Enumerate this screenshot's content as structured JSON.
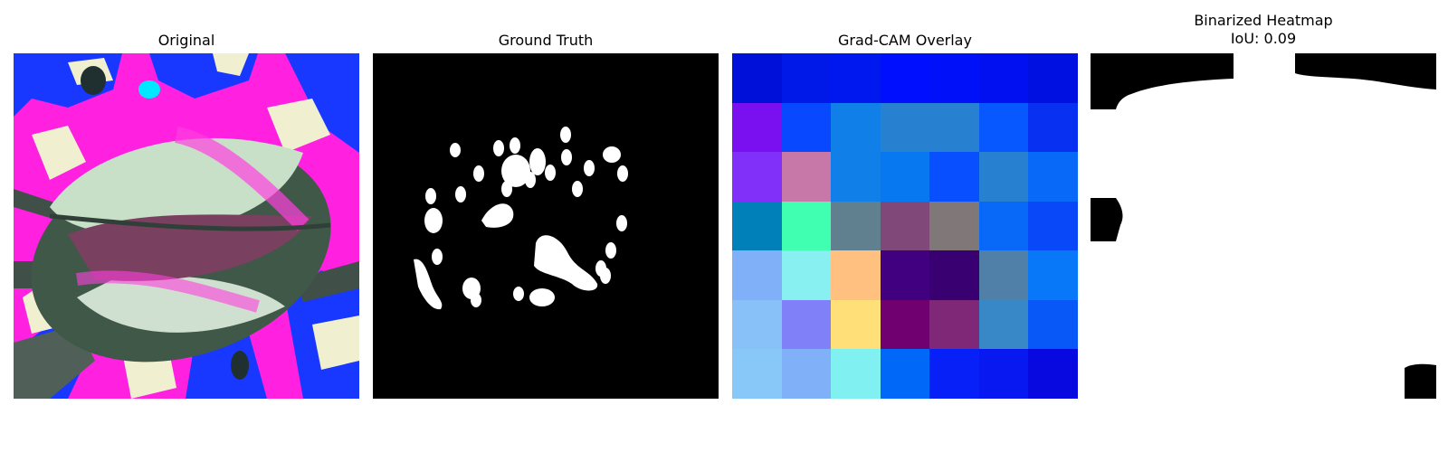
{
  "figure": {
    "panels": [
      {
        "id": "original",
        "title_lines": [
          "Original"
        ],
        "icon": "leaf-image"
      },
      {
        "id": "ground_truth",
        "title_lines": [
          "Ground Truth"
        ],
        "icon": "binary-mask"
      },
      {
        "id": "gradcam_overlay",
        "title_lines": [
          "Grad-CAM Overlay"
        ],
        "icon": "heatmap-grid"
      },
      {
        "id": "binarized_heatmap",
        "title_lines": [
          "Binarized Heatmap",
          "IoU: 0.09"
        ],
        "icon": "binary-mask"
      }
    ],
    "iou": 0.09,
    "gradcam_cells": [
      [
        "#0010d8",
        "#0018e8",
        "#0018f0",
        "#0010ff",
        "#0010f8",
        "#0010f0",
        "#0010e0"
      ],
      [
        "#7a10f0",
        "#0848ff",
        "#1080e8",
        "#2880d0",
        "#2880d0",
        "#0858ff",
        "#0830f0"
      ],
      [
        "#8030f8",
        "#c878a8",
        "#1080e8",
        "#0878f0",
        "#0850ff",
        "#2880d0",
        "#0868f8"
      ],
      [
        "#0080b8",
        "#40ffb0",
        "#608090",
        "#804878",
        "#807878",
        "#0868f8",
        "#0848f8"
      ],
      [
        "#80b0f8",
        "#88f0f0",
        "#ffc080",
        "#400080",
        "#380070",
        "#5080a8",
        "#0878f8"
      ],
      [
        "#88c0f8",
        "#8080f8",
        "#ffe078",
        "#700070",
        "#802878",
        "#3888c8",
        "#0858f8"
      ],
      [
        "#88c8f8",
        "#80b0f8",
        "#80f0f0",
        "#0068f8",
        "#0820f8",
        "#0818f0",
        "#0808e0"
      ]
    ],
    "colors": {
      "mask_foreground": "#ffffff",
      "mask_background": "#000000",
      "leaf_pale": "#c8e0c8",
      "leaf_dark": "#405848",
      "bg_magenta": "#ff20e0",
      "bg_blue": "#1838ff",
      "bg_cream": "#f0f0d0"
    }
  }
}
